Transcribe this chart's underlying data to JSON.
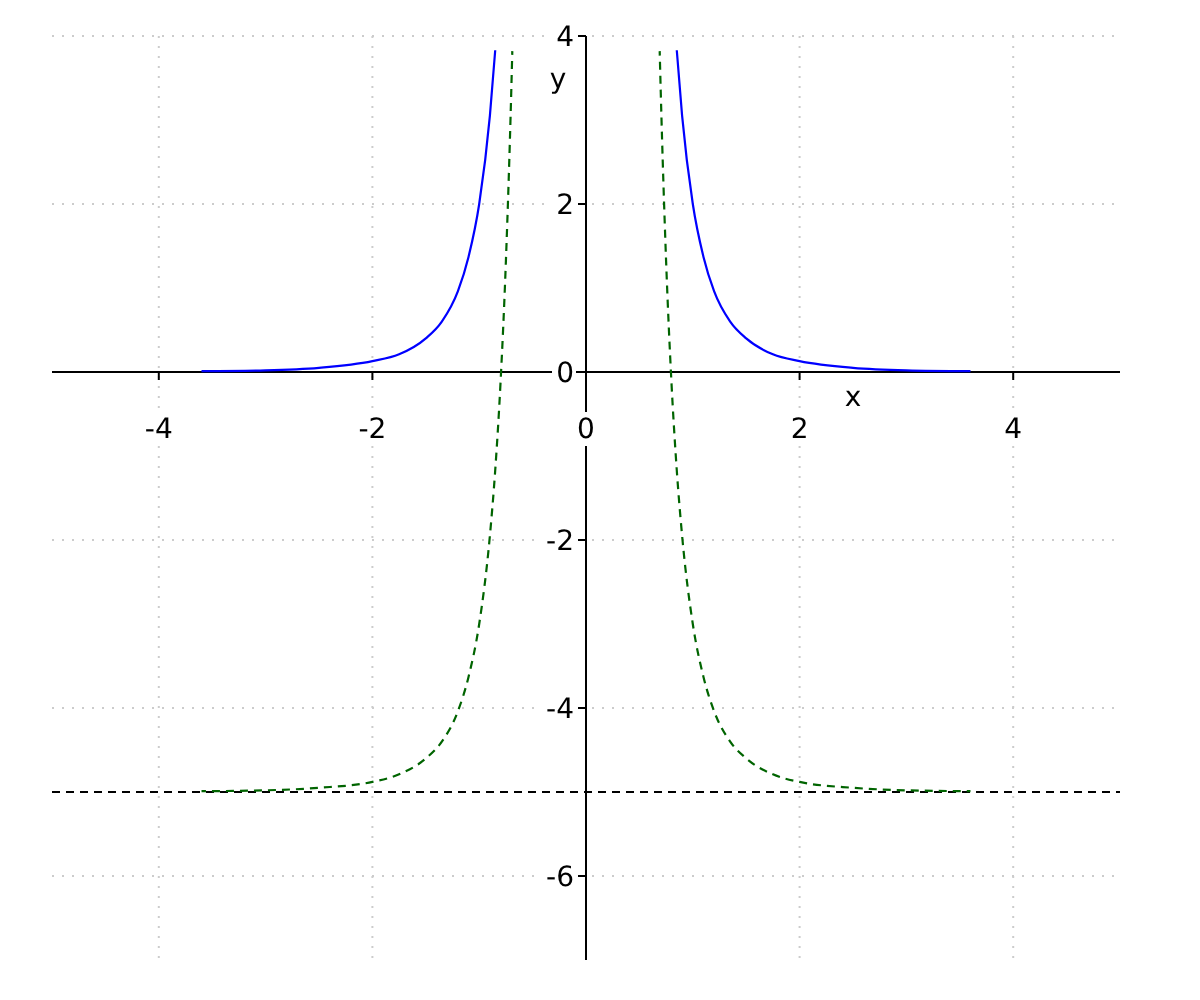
{
  "chart_data": {
    "type": "line",
    "xlabel": "x",
    "ylabel": "y",
    "xlim": [
      -5,
      5
    ],
    "ylim": [
      -7,
      4
    ],
    "xticks": [
      -4,
      -2,
      0,
      2,
      4
    ],
    "yticks": [
      -6,
      -4,
      -2,
      0,
      2,
      4
    ],
    "grid": true,
    "series": [
      {
        "color": "#0000ff",
        "line_style": "solid",
        "x": [
          -3.6,
          -3,
          -2.5,
          -2,
          -1.75,
          -1.5,
          -1.35,
          -1.2,
          -1.1,
          -1,
          -0.9,
          -0.85,
          0,
          0.85,
          0.9,
          1,
          1.1,
          1.2,
          1.35,
          1.5,
          1.75,
          2,
          2.5,
          3,
          3.6
        ],
        "values": [
          0.01,
          0.02,
          0.05,
          0.13,
          0.21,
          0.4,
          0.6,
          0.96,
          1.37,
          2,
          3.05,
          3.83,
          null,
          3.83,
          3.05,
          2,
          1.37,
          0.96,
          0.6,
          0.4,
          0.21,
          0.13,
          0.05,
          0.02,
          0.01
        ]
      },
      {
        "color": "#006400",
        "line_style": "dashed",
        "x": [
          -3.6,
          -3,
          -2.5,
          -2,
          -1.75,
          -1.5,
          -1.35,
          -1.2,
          -1.1,
          -1,
          -0.9,
          -0.85,
          -0.8,
          -0.75,
          -0.7,
          -0.69,
          0,
          0.69,
          0.7,
          0.75,
          0.8,
          0.85,
          0.9,
          1,
          1.1,
          1.2,
          1.35,
          1.5,
          1.75,
          2,
          2.5,
          3,
          3.6
        ],
        "values": [
          -4.99,
          -4.98,
          -4.95,
          -4.88,
          -4.79,
          -4.6,
          -4.4,
          -4.04,
          -3.63,
          -3,
          -1.95,
          -1.17,
          -0.12,
          1.32,
          3.33,
          3.82,
          null,
          3.82,
          3.33,
          1.32,
          -0.12,
          -1.17,
          -1.95,
          -3,
          -3.63,
          -4.04,
          -4.4,
          -4.6,
          -4.79,
          -4.88,
          -4.95,
          -4.98,
          -4.99
        ]
      }
    ],
    "ref_lines": [
      {
        "axis": "y",
        "value": -5,
        "color": "#000000",
        "line_style": "dashed"
      }
    ]
  }
}
